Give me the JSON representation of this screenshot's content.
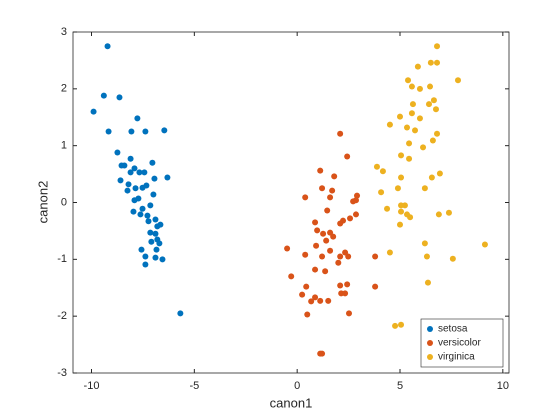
{
  "chart_data": {
    "type": "scatter",
    "x_label": "canon1",
    "y_label": "canon2",
    "xlim": [
      -10.9,
      10.3
    ],
    "ylim": [
      -3,
      3
    ],
    "xticks": [
      -10,
      -5,
      0,
      5,
      10
    ],
    "yticks": [
      -3,
      -2,
      -1,
      0,
      1,
      2,
      3
    ],
    "grid": false,
    "legend_position": "southeast",
    "series": [
      {
        "name": "setosa",
        "color": "#0072BD",
        "x": [
          -9.22,
          -9.9,
          -9.4,
          -8.64,
          -9.17,
          -7.77,
          -8.06,
          -7.38,
          -6.46,
          -8.74,
          -8.4,
          -8.54,
          -8.1,
          -7.91,
          -7.67,
          -7.43,
          -7.04,
          -8.1,
          -8.59,
          -8.2,
          -7.86,
          -8.25,
          -6.94,
          -6.99,
          -6.31,
          -7.91,
          -7.52,
          -7.96,
          -7.62,
          -7.28,
          -7.23,
          -6.8,
          -7.14,
          -6.89,
          -6.8,
          -7.09,
          -6.7,
          -7.57,
          -6.84,
          -7.38,
          -6.89,
          -6.55,
          -7.38,
          -5.68,
          -7.52,
          -7.33,
          -6.89,
          -6.65,
          -7.72,
          -7.14
        ],
        "values": [
          2.75,
          1.6,
          1.88,
          1.85,
          1.25,
          1.48,
          1.25,
          1.25,
          1.27,
          0.88,
          0.65,
          0.65,
          0.77,
          0.6,
          0.53,
          0.53,
          0.7,
          0.53,
          0.39,
          0.32,
          0.25,
          0.21,
          0.42,
          0.14,
          0.44,
          0.04,
          -0.11,
          -0.16,
          -0.21,
          -0.23,
          -0.33,
          -0.42,
          -0.53,
          -0.55,
          -0.65,
          -0.69,
          -0.72,
          -0.83,
          -0.83,
          -0.95,
          -0.97,
          -1.0,
          -1.09,
          -1.95,
          0.26,
          0.3,
          -0.3,
          -0.39,
          0.07,
          -0.05
        ]
      },
      {
        "name": "versicolor",
        "color": "#D95319",
        "x": [
          2.09,
          2.43,
          1.12,
          1.8,
          1.7,
          1.21,
          0.39,
          1.6,
          2.91,
          2.72,
          2.86,
          1.46,
          2.23,
          2.57,
          2.09,
          0.97,
          1.26,
          1.6,
          1.41,
          1.75,
          0.92,
          -0.49,
          0.39,
          1.6,
          1.21,
          2.09,
          2.48,
          2.33,
          2.0,
          0.87,
          1.36,
          -0.29,
          2.43,
          2.09,
          0.44,
          3.79,
          2.14,
          2.33,
          0.24,
          0.87,
          1.12,
          1.51,
          0.68,
          2.52,
          0.49,
          1.12,
          1.21,
          3.79,
          2.86,
          0.87
        ],
        "values": [
          1.21,
          0.81,
          0.56,
          0.46,
          0.21,
          0.25,
          0.09,
          0.09,
          0.12,
          0.02,
          -0.21,
          -0.14,
          -0.32,
          -0.28,
          -0.37,
          -0.49,
          -0.55,
          -0.53,
          -0.67,
          -0.6,
          -0.76,
          -0.81,
          -0.92,
          -0.85,
          -0.95,
          -0.95,
          -0.95,
          -0.88,
          -1.06,
          -1.18,
          -1.21,
          -1.3,
          -1.44,
          -1.46,
          -1.48,
          -1.48,
          -1.6,
          -1.6,
          -1.62,
          -1.67,
          -1.73,
          -1.73,
          -1.74,
          -1.95,
          -1.97,
          -2.66,
          -2.66,
          -0.95,
          0.04,
          -0.35
        ]
      },
      {
        "name": "virginica",
        "color": "#EDB120",
        "x": [
          6.8,
          6.5,
          6.8,
          5.87,
          5.39,
          7.82,
          5.58,
          6.46,
          5.97,
          6.65,
          6.41,
          5.63,
          6.75,
          5.58,
          5.0,
          5.97,
          4.51,
          5.34,
          5.73,
          6.8,
          6.6,
          5.44,
          6.12,
          5.05,
          5.44,
          3.88,
          4.17,
          6.94,
          6.55,
          5.05,
          4.08,
          4.9,
          6.21,
          4.37,
          5.05,
          5.24,
          5.05,
          5.34,
          5.49,
          5.0,
          6.89,
          7.38,
          6.21,
          9.13,
          4.51,
          6.31,
          7.57,
          6.36,
          4.76,
          5.05
        ],
        "values": [
          2.75,
          2.46,
          2.46,
          2.39,
          2.15,
          2.15,
          2.04,
          2.04,
          2.0,
          1.8,
          1.73,
          1.73,
          1.64,
          1.57,
          1.51,
          1.48,
          1.37,
          1.32,
          1.27,
          1.21,
          1.09,
          1.04,
          0.97,
          0.83,
          0.77,
          0.63,
          0.55,
          0.51,
          0.44,
          0.44,
          0.18,
          0.25,
          0.25,
          -0.11,
          -0.05,
          -0.05,
          -0.16,
          -0.21,
          -0.26,
          -0.39,
          -0.21,
          -0.18,
          -0.72,
          -0.74,
          -0.88,
          -0.95,
          -0.99,
          -1.41,
          -2.17,
          -2.15
        ]
      }
    ]
  }
}
